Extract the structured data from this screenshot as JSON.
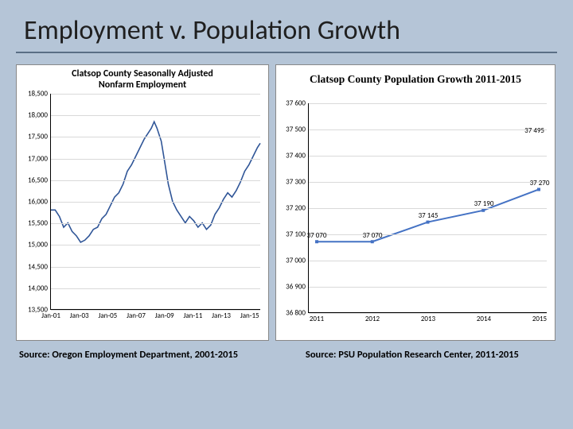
{
  "slide": {
    "title": "Employment v. Population Growth",
    "background_color": "#b5c5d7",
    "hr_color": "#5a6e85"
  },
  "left_chart": {
    "type": "line",
    "title": "Clatsop County Seasonally Adjusted\nNonfarm Employment",
    "title_fontsize": 12,
    "ylim": [
      13500,
      18500
    ],
    "ytick_step": 500,
    "yticks": [
      "13,500",
      "14,000",
      "14,500",
      "15,000",
      "15,500",
      "16,000",
      "16,500",
      "17,000",
      "17,500",
      "18,000",
      "18,500"
    ],
    "xticks": [
      "Jan-01",
      "Jan-03",
      "Jan-05",
      "Jan-07",
      "Jan-09",
      "Jan-11",
      "Jan-13",
      "Jan-15"
    ],
    "x_start": 2001,
    "x_end": 2015.8,
    "grid_color": "#d9d9d9",
    "line_color": "#2f5597",
    "line_width": 1.6,
    "series": [
      [
        2001.0,
        15800
      ],
      [
        2001.3,
        15800
      ],
      [
        2001.6,
        15650
      ],
      [
        2001.9,
        15400
      ],
      [
        2002.2,
        15500
      ],
      [
        2002.5,
        15300
      ],
      [
        2002.8,
        15200
      ],
      [
        2003.1,
        15050
      ],
      [
        2003.4,
        15100
      ],
      [
        2003.7,
        15200
      ],
      [
        2004.0,
        15350
      ],
      [
        2004.3,
        15400
      ],
      [
        2004.6,
        15600
      ],
      [
        2004.9,
        15700
      ],
      [
        2005.2,
        15900
      ],
      [
        2005.5,
        16100
      ],
      [
        2005.8,
        16200
      ],
      [
        2006.1,
        16400
      ],
      [
        2006.4,
        16700
      ],
      [
        2006.7,
        16850
      ],
      [
        2007.0,
        17050
      ],
      [
        2007.3,
        17250
      ],
      [
        2007.6,
        17450
      ],
      [
        2007.9,
        17600
      ],
      [
        2008.1,
        17700
      ],
      [
        2008.3,
        17850
      ],
      [
        2008.5,
        17700
      ],
      [
        2008.8,
        17400
      ],
      [
        2009.0,
        17000
      ],
      [
        2009.3,
        16400
      ],
      [
        2009.6,
        16000
      ],
      [
        2009.9,
        15800
      ],
      [
        2010.2,
        15650
      ],
      [
        2010.5,
        15500
      ],
      [
        2010.8,
        15650
      ],
      [
        2011.1,
        15550
      ],
      [
        2011.4,
        15400
      ],
      [
        2011.7,
        15500
      ],
      [
        2012.0,
        15350
      ],
      [
        2012.3,
        15450
      ],
      [
        2012.6,
        15700
      ],
      [
        2012.9,
        15850
      ],
      [
        2013.2,
        16050
      ],
      [
        2013.5,
        16200
      ],
      [
        2013.8,
        16100
      ],
      [
        2014.1,
        16250
      ],
      [
        2014.4,
        16450
      ],
      [
        2014.7,
        16700
      ],
      [
        2015.0,
        16850
      ],
      [
        2015.3,
        17050
      ],
      [
        2015.6,
        17250
      ],
      [
        2015.8,
        17350
      ]
    ]
  },
  "right_chart": {
    "type": "line",
    "title": "Clatsop County Population Growth 2011-2015",
    "title_fontsize": 13.5,
    "ylim": [
      36800,
      37600
    ],
    "ytick_step": 100,
    "yticks": [
      "36 800",
      "36 900",
      "37 000",
      "37 100",
      "37 200",
      "37 300",
      "37 400",
      "37 500",
      "37 600"
    ],
    "xticks": [
      "2011",
      "2012",
      "2013",
      "2014",
      "2015"
    ],
    "grid_color": "#d9d9d9",
    "line_color": "#4472c4",
    "line_width": 2,
    "marker_color": "#4472c4",
    "marker_size": 4,
    "series_x": [
      2011,
      2012,
      2013,
      2014,
      2015
    ],
    "series_y": [
      37070,
      37070,
      37145,
      37190,
      37270
    ],
    "data_labels": [
      "37 070",
      "37 070",
      "37 145",
      "37 190",
      "37 270"
    ],
    "endpoint_label": "37 495",
    "endpoint_y": 37495
  },
  "sources": {
    "left": "Source: Oregon Employment Department, 2001-2015",
    "right": "Source: PSU Population Research Center, 2011-2015"
  }
}
